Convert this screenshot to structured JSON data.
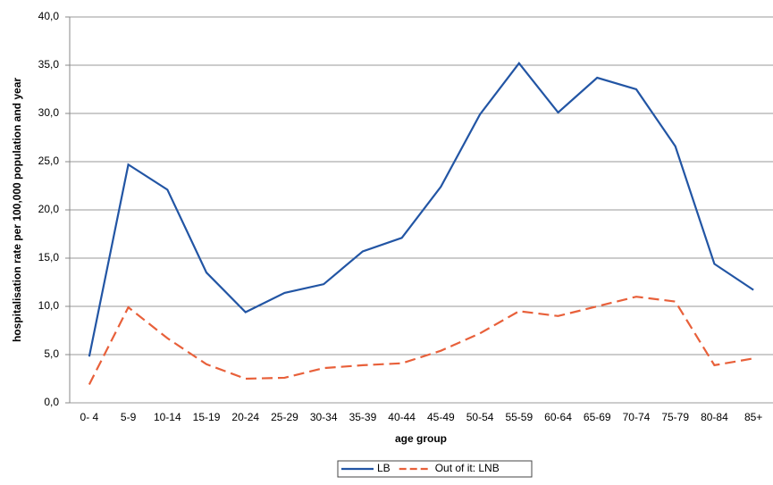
{
  "chart_data": {
    "type": "line",
    "y_label": "hospitalisation rate per 100,000 population and year",
    "x_label": "age group",
    "categories": [
      "0- 4",
      "5-9",
      "10-14",
      "15-19",
      "20-24",
      "25-29",
      "30-34",
      "35-39",
      "40-44",
      "45-49",
      "50-54",
      "55-59",
      "60-64",
      "65-69",
      "70-74",
      "75-79",
      "80-84",
      "85+"
    ],
    "series": [
      {
        "name": "LB",
        "color": "#2255a4",
        "dash": false,
        "values": [
          4.8,
          24.7,
          22.1,
          13.5,
          9.4,
          11.4,
          12.3,
          15.7,
          17.1,
          22.4,
          29.9,
          35.2,
          30.1,
          33.7,
          32.5,
          26.6,
          14.4,
          11.7
        ]
      },
      {
        "name": "Out of it: LNB",
        "color": "#e8603a",
        "dash": true,
        "values": [
          1.9,
          9.9,
          6.7,
          4.0,
          2.5,
          2.6,
          3.6,
          3.9,
          4.1,
          5.4,
          7.2,
          9.5,
          9.0,
          10.0,
          11.0,
          10.5,
          3.9,
          4.6
        ]
      }
    ],
    "ylim": [
      0,
      40
    ],
    "yticks": [
      {
        "value": 0,
        "label": "0,0"
      },
      {
        "value": 5,
        "label": "5,0"
      },
      {
        "value": 10,
        "label": "10,0"
      },
      {
        "value": 15,
        "label": "15,0"
      },
      {
        "value": 20,
        "label": "20,0"
      },
      {
        "value": 25,
        "label": "25,0"
      },
      {
        "value": 30,
        "label": "30,0"
      },
      {
        "value": 35,
        "label": "35,0"
      },
      {
        "value": 40,
        "label": "40,0"
      }
    ],
    "grid": true
  }
}
